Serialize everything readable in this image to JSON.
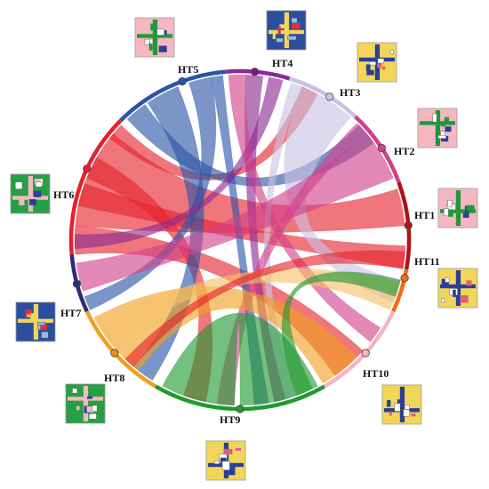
{
  "nodes": [
    {
      "id": "HT1",
      "label": "HT1",
      "color": "#b0121c",
      "angle": 5,
      "thumb": "pink"
    },
    {
      "id": "HT2",
      "label": "HT2",
      "color": "#d1408a",
      "angle": 33,
      "thumb": "pink"
    },
    {
      "id": "HT3",
      "label": "HT3",
      "color": "#c9c1e3",
      "angle": 58,
      "thumb": "yellow"
    },
    {
      "id": "HT4",
      "label": "HT4",
      "color": "#7d1a86",
      "angle": 85,
      "thumb": "blue"
    },
    {
      "id": "HT5",
      "label": "HT5",
      "color": "#2a54a6",
      "angle": 110,
      "thumb": "pink"
    },
    {
      "id": "HT6",
      "label": "HT6",
      "color": "#e5222c",
      "angle": 155,
      "thumb": "green"
    },
    {
      "id": "HT7",
      "label": "HT7",
      "color": "#2e2a7c",
      "angle": 195,
      "thumb": "blue"
    },
    {
      "id": "HT8",
      "label": "HT8",
      "color": "#f08a1e",
      "angle": 222,
      "thumb": "green"
    },
    {
      "id": "HT9",
      "label": "HT9",
      "color": "#1f9a2e",
      "angle": 270,
      "thumb": "yellow"
    },
    {
      "id": "HT10",
      "label": "HT10",
      "color": "#f6b4c0",
      "angle": 318,
      "thumb": "yellow"
    },
    {
      "id": "HT11",
      "label": "HT11",
      "color": "#f26a1b",
      "angle": 347,
      "thumb": "yellow"
    }
  ],
  "arcs": [
    {
      "node": "HT1",
      "start": 350,
      "end": 20,
      "color": "#b0121c"
    },
    {
      "node": "HT2",
      "start": 20,
      "end": 47,
      "color": "#d1408a"
    },
    {
      "node": "HT3",
      "start": 47,
      "end": 73,
      "color": "#c9c1e3"
    },
    {
      "node": "HT4",
      "start": 73,
      "end": 95,
      "color": "#8a2a92"
    },
    {
      "node": "HT5",
      "start": 95,
      "end": 135,
      "color": "#2a54a6"
    },
    {
      "node": "HT6",
      "start": 135,
      "end": 185,
      "color": "#e5222c"
    },
    {
      "node": "HT7",
      "start": 185,
      "end": 205,
      "color": "#2e2a7c"
    },
    {
      "node": "HT8",
      "start": 205,
      "end": 240,
      "color": "#f0a020"
    },
    {
      "node": "HT9",
      "start": 240,
      "end": 300,
      "color": "#1f9a2e"
    },
    {
      "node": "HT10",
      "start": 300,
      "end": 335,
      "color": "#f6b4c0"
    },
    {
      "node": "HT11",
      "start": 335,
      "end": 350,
      "color": "#f26a1b"
    }
  ],
  "links": [
    {
      "a1": 140,
      "a2": 175,
      "b1": 5,
      "b2": 18,
      "color": "#e5222c"
    },
    {
      "a1": 175,
      "a2": 185,
      "b1": 305,
      "b2": 318,
      "color": "#e5222c"
    },
    {
      "a1": 160,
      "a2": 168,
      "b1": 350,
      "b2": 358,
      "color": "#e5222c"
    },
    {
      "a1": 150,
      "a2": 158,
      "b1": 250,
      "b2": 258,
      "color": "#e5222c"
    },
    {
      "a1": 136,
      "a2": 142,
      "b1": 62,
      "b2": 68,
      "color": "#e5222c"
    },
    {
      "a1": 112,
      "a2": 124,
      "b1": 230,
      "b2": 238,
      "color": "#2a54a6"
    },
    {
      "a1": 100,
      "a2": 108,
      "b1": 200,
      "b2": 205,
      "color": "#2a54a6"
    },
    {
      "a1": 125,
      "a2": 133,
      "b1": 36,
      "b2": 44,
      "color": "#2a54a6"
    },
    {
      "a1": 96,
      "a2": 100,
      "b1": 275,
      "b2": 280,
      "color": "#2a54a6"
    },
    {
      "a1": 75,
      "a2": 80,
      "b1": 178,
      "b2": 183,
      "color": "#8a2a92"
    },
    {
      "a1": 82,
      "a2": 88,
      "b1": 282,
      "b2": 286,
      "color": "#8a2a92"
    },
    {
      "a1": 88,
      "a2": 94,
      "b1": 322,
      "b2": 328,
      "color": "#d1408a"
    },
    {
      "a1": 48,
      "a2": 68,
      "b1": 338,
      "b2": 346,
      "color": "#c9c1e3"
    },
    {
      "a1": 68,
      "a2": 72,
      "b1": 286,
      "b2": 290,
      "color": "#c9c1e3"
    },
    {
      "a1": 22,
      "a2": 40,
      "b1": 188,
      "b2": 198,
      "color": "#d1408a"
    },
    {
      "a1": 40,
      "a2": 45,
      "b1": 262,
      "b2": 268,
      "color": "#d1408a"
    },
    {
      "a1": 208,
      "a2": 232,
      "b1": 300,
      "b2": 315,
      "color": "#f0a020"
    },
    {
      "a1": 335,
      "a2": 345,
      "b1": 212,
      "b2": 220,
      "color": "#f5c06a"
    },
    {
      "a1": 242,
      "a2": 268,
      "b1": 270,
      "b2": 298,
      "color": "#1f9a2e"
    },
    {
      "a1": 290,
      "a2": 296,
      "b1": 340,
      "b2": 346,
      "color": "#1f9a2e"
    },
    {
      "a1": 350,
      "a2": 356,
      "b1": 226,
      "b2": 230,
      "color": "#e5222c"
    }
  ]
}
